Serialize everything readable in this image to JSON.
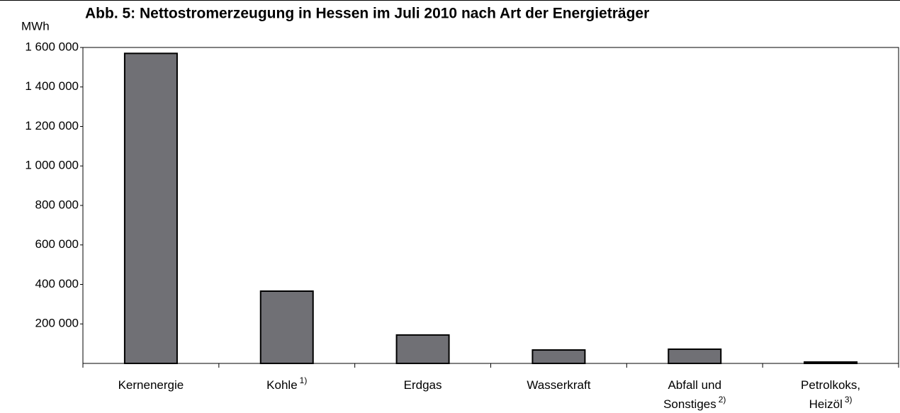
{
  "chart_data": {
    "type": "bar",
    "title": "Abb. 5: Nettostromerzeugung in Hessen im Juli 2010 nach Art der Energieträger",
    "y_label": "MWh",
    "categories": [
      [
        "Kernenergie"
      ],
      [
        "Kohle"
      ],
      [
        "Erdgas"
      ],
      [
        "Wasserkraft"
      ],
      [
        "Abfall und",
        "Sonstiges"
      ],
      [
        "Petrolkoks,",
        "Heizöl"
      ]
    ],
    "footnotes": [
      null,
      "1)",
      null,
      null,
      "2)",
      "3)"
    ],
    "values": [
      1570000,
      366000,
      144000,
      68000,
      72000,
      7000
    ],
    "color": "#707075",
    "ylim": [
      0,
      1600000
    ],
    "yticks": [
      {
        "value": 200000,
        "label": "200 000"
      },
      {
        "value": 400000,
        "label": "400 000"
      },
      {
        "value": 600000,
        "label": "600 000"
      },
      {
        "value": 800000,
        "label": "800 000"
      },
      {
        "value": 1000000,
        "label": "1 000 000"
      },
      {
        "value": 1200000,
        "label": "1 200 000"
      },
      {
        "value": 1400000,
        "label": "1 400 000"
      },
      {
        "value": 1600000,
        "label": "1 600 000"
      }
    ],
    "grid": false
  }
}
